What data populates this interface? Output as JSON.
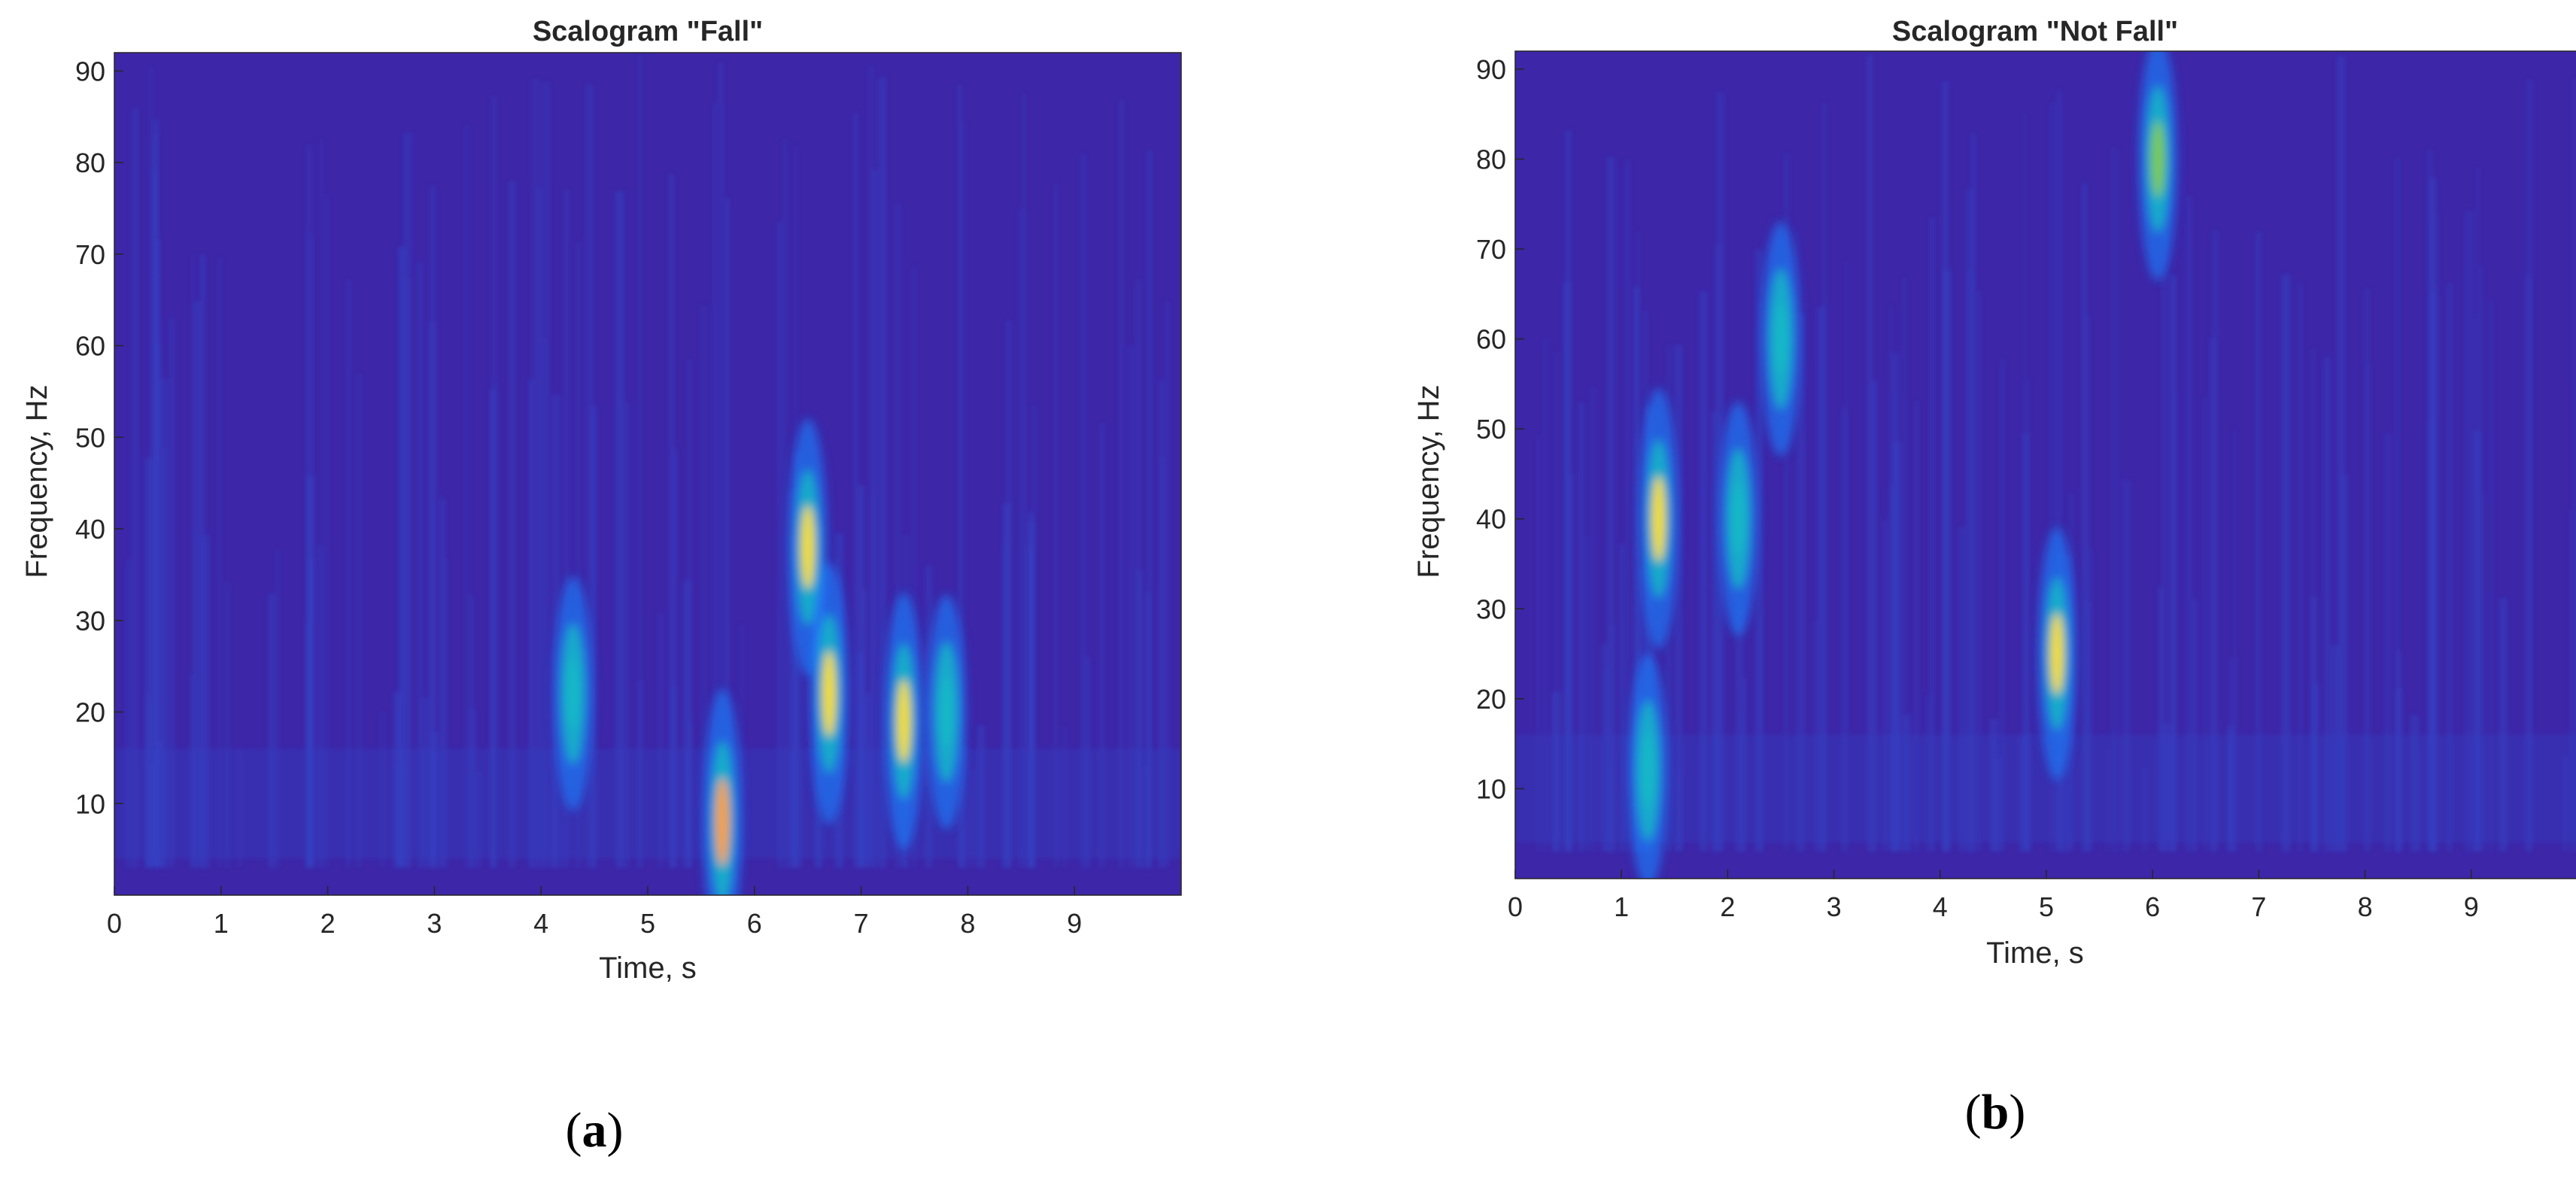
{
  "colors": {
    "background_low": "#3d26a8",
    "mid_blue": "#1f78f5",
    "cyan": "#15b8c7",
    "green": "#7bcb4e",
    "yellow": "#f4de1f",
    "orange": "#f8a03a",
    "axis_text": "#262626"
  },
  "panels": [
    {
      "caption_letter": "a",
      "chart_data": {
        "type": "heatmap",
        "title": "Scalogram \"Fall\"",
        "xlabel": "Time, s",
        "ylabel": "Frequency, Hz",
        "xlim": [
          0,
          10
        ],
        "ylim": [
          0,
          92
        ],
        "x_ticks": [
          0,
          1,
          2,
          3,
          4,
          5,
          6,
          7,
          8,
          9
        ],
        "y_ticks": [
          10,
          20,
          30,
          40,
          50,
          60,
          70,
          80,
          90
        ],
        "colormap": "parula",
        "grid": false,
        "high_energy_regions": [
          {
            "t": 4.3,
            "f": 22,
            "level": 0.6
          },
          {
            "t": 5.7,
            "f": 8,
            "level": 0.95
          },
          {
            "t": 6.5,
            "f": 38,
            "level": 0.85
          },
          {
            "t": 6.7,
            "f": 22,
            "level": 0.9
          },
          {
            "t": 7.4,
            "f": 19,
            "level": 0.85
          },
          {
            "t": 7.8,
            "f": 20,
            "level": 0.6
          }
        ]
      }
    },
    {
      "caption_letter": "b",
      "chart_data": {
        "type": "heatmap",
        "title": "Scalogram \"Not Fall\"",
        "xlabel": "Time, s",
        "ylabel": "Frequency, Hz",
        "xlim": [
          0,
          10
        ],
        "ylim": [
          0,
          92
        ],
        "x_ticks": [
          0,
          1,
          2,
          3,
          4,
          5,
          6,
          7,
          8,
          9
        ],
        "y_ticks": [
          10,
          20,
          30,
          40,
          50,
          60,
          70,
          80,
          90
        ],
        "colormap": "parula",
        "grid": false,
        "high_energy_regions": [
          {
            "t": 1.35,
            "f": 40,
            "level": 0.9
          },
          {
            "t": 1.25,
            "f": 12,
            "level": 0.6
          },
          {
            "t": 2.1,
            "f": 40,
            "level": 0.6
          },
          {
            "t": 2.5,
            "f": 60,
            "level": 0.6
          },
          {
            "t": 5.1,
            "f": 25,
            "level": 0.8
          },
          {
            "t": 6.05,
            "f": 80,
            "level": 0.7
          }
        ]
      }
    }
  ]
}
